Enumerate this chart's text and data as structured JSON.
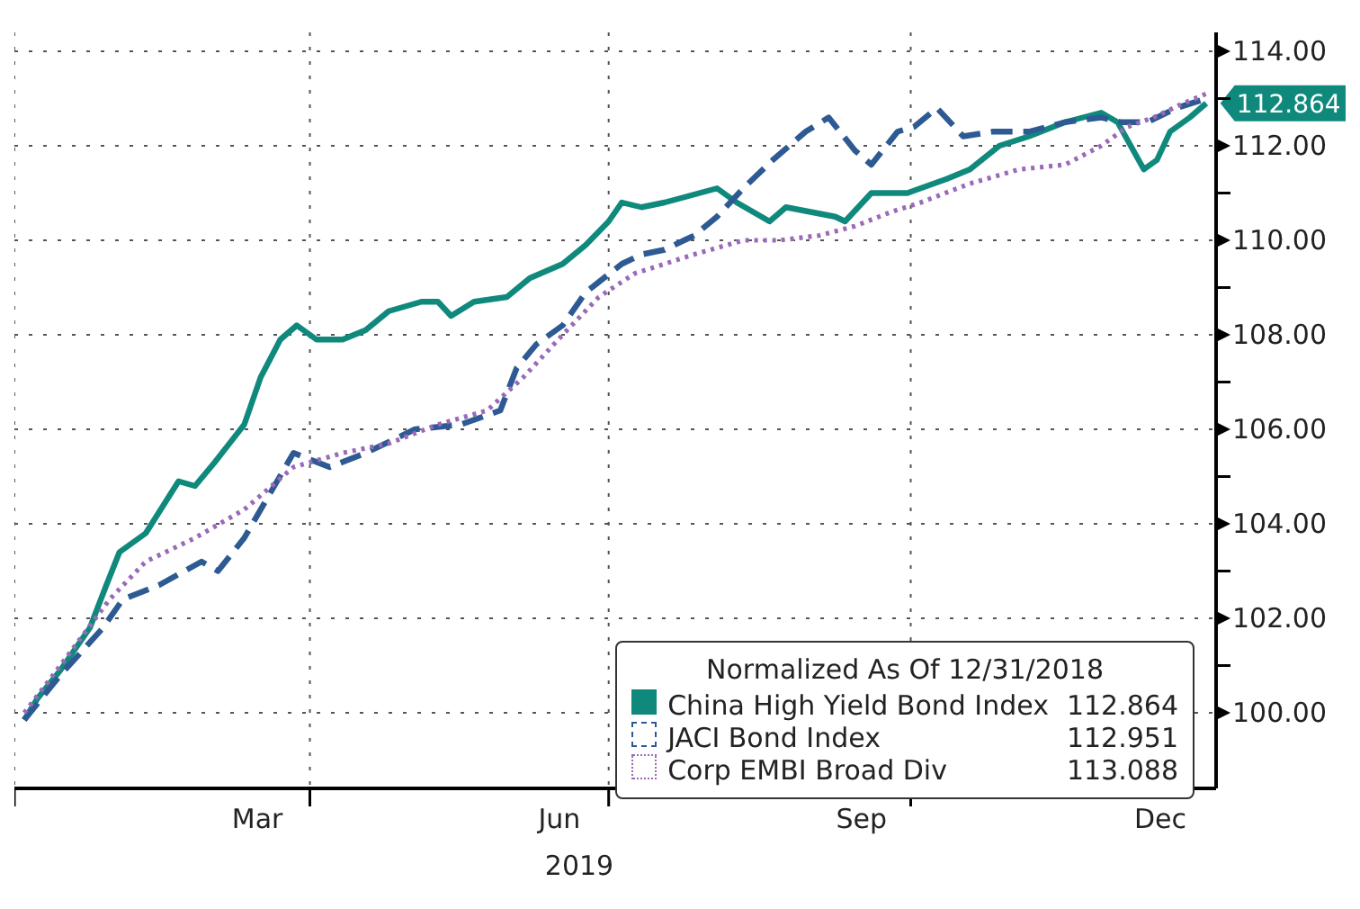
{
  "chart_data": {
    "type": "line",
    "xlabel": "2019",
    "legend_title": "Normalized As Of 12/31/2018",
    "xlim": [
      "2019-01-01",
      "2020-01-02"
    ],
    "xticks": [
      {
        "value": "2019-01-01",
        "label": null
      },
      {
        "value": "2019-03-16",
        "label": "Mar"
      },
      {
        "value": "2019-04-01",
        "label": null
      },
      {
        "value": "2019-06-16",
        "label": "Jun"
      },
      {
        "value": "2019-07-01",
        "label": null
      },
      {
        "value": "2019-09-16",
        "label": "Sep"
      },
      {
        "value": "2019-10-01",
        "label": null
      },
      {
        "value": "2019-12-16",
        "label": "Dec"
      }
    ],
    "ylim": [
      98.4,
      114.4
    ],
    "yticks": [
      {
        "value": 100,
        "label": "100.00"
      },
      {
        "value": 101,
        "label": null
      },
      {
        "value": 102,
        "label": "102.00"
      },
      {
        "value": 103,
        "label": null
      },
      {
        "value": 104,
        "label": "104.00"
      },
      {
        "value": 105,
        "label": null
      },
      {
        "value": 106,
        "label": "106.00"
      },
      {
        "value": 107,
        "label": null
      },
      {
        "value": 108,
        "label": "108.00"
      },
      {
        "value": 109,
        "label": null
      },
      {
        "value": 110,
        "label": "110.00"
      },
      {
        "value": 111,
        "label": null
      },
      {
        "value": 112,
        "label": "112.00"
      },
      {
        "value": 113,
        "label": null
      },
      {
        "value": 114,
        "label": "114.00"
      }
    ],
    "grid": true,
    "legend": "bottom right",
    "annotations": [
      {
        "text": "112.864",
        "x": "2019-12-31",
        "y": 112.9
      },
      "112.864",
      "112.951",
      "113.088"
    ],
    "series": [
      {
        "name": "China High Yield Bond Index",
        "color": "#10897d",
        "line_style": "solid",
        "x": [
          "2019-01-04",
          "2019-01-08",
          "2019-01-15",
          "2019-01-24",
          "2019-01-29",
          "2019-02-02",
          "2019-02-10",
          "2019-02-20",
          "2019-02-25",
          "2019-03-03",
          "2019-03-12",
          "2019-03-17",
          "2019-03-23",
          "2019-03-28",
          "2019-04-03",
          "2019-04-11",
          "2019-04-18",
          "2019-04-25",
          "2019-05-05",
          "2019-05-10",
          "2019-05-14",
          "2019-05-21",
          "2019-05-31",
          "2019-06-07",
          "2019-06-17",
          "2019-06-24",
          "2019-07-01",
          "2019-07-05",
          "2019-07-11",
          "2019-07-18",
          "2019-08-03",
          "2019-08-09",
          "2019-08-19",
          "2019-08-24",
          "2019-09-08",
          "2019-09-11",
          "2019-09-19",
          "2019-09-30",
          "2019-10-12",
          "2019-10-19",
          "2019-10-28",
          "2019-11-06",
          "2019-11-17",
          "2019-11-28",
          "2019-12-03",
          "2019-12-11",
          "2019-12-15",
          "2019-12-19",
          "2019-12-25",
          "2019-12-30"
        ],
        "values": [
          99.85,
          100.3,
          100.9,
          101.8,
          102.7,
          103.4,
          103.8,
          104.9,
          104.8,
          105.3,
          106.1,
          107.1,
          107.9,
          108.2,
          107.9,
          107.9,
          108.1,
          108.5,
          108.7,
          108.7,
          108.4,
          108.7,
          108.8,
          109.2,
          109.5,
          109.9,
          110.4,
          110.8,
          110.7,
          110.8,
          111.1,
          110.8,
          110.4,
          110.7,
          110.5,
          110.4,
          111.0,
          111.0,
          111.3,
          111.5,
          112.0,
          112.2,
          112.5,
          112.7,
          112.5,
          111.5,
          111.7,
          112.3,
          112.6,
          112.9
        ]
      },
      {
        "name": "JACI Bond Index",
        "color": "#2e5a93",
        "line_style": "dashed",
        "x": [
          "2019-01-04",
          "2019-01-15",
          "2019-01-28",
          "2019-02-03",
          "2019-02-14",
          "2019-02-27",
          "2019-03-04",
          "2019-03-12",
          "2019-03-27",
          "2019-04-07",
          "2019-04-18",
          "2019-05-03",
          "2019-05-17",
          "2019-05-29",
          "2019-06-03",
          "2019-06-09",
          "2019-06-17",
          "2019-06-24",
          "2019-07-05",
          "2019-07-11",
          "2019-07-18",
          "2019-07-27",
          "2019-08-03",
          "2019-08-11",
          "2019-08-20",
          "2019-08-30",
          "2019-09-06",
          "2019-09-14",
          "2019-09-19",
          "2019-09-27",
          "2019-10-02",
          "2019-10-09",
          "2019-10-17",
          "2019-10-26",
          "2019-11-06",
          "2019-11-17",
          "2019-11-28",
          "2019-12-04",
          "2019-12-12",
          "2019-12-21",
          "2019-12-30"
        ],
        "values": [
          99.85,
          100.8,
          101.8,
          102.4,
          102.7,
          103.2,
          103.0,
          103.7,
          105.5,
          105.2,
          105.5,
          106.0,
          106.1,
          106.4,
          107.3,
          107.8,
          108.2,
          108.9,
          109.5,
          109.7,
          109.8,
          110.1,
          110.5,
          111.1,
          111.7,
          112.3,
          112.6,
          111.9,
          111.6,
          112.3,
          112.4,
          112.8,
          112.2,
          112.3,
          112.3,
          112.5,
          112.6,
          112.5,
          112.5,
          112.8,
          113.0
        ]
      },
      {
        "name": "Corp EMBI Broad Div",
        "color": "#9a6ab8",
        "line_style": "dotted",
        "x": [
          "2019-01-04",
          "2019-01-15",
          "2019-01-30",
          "2019-02-10",
          "2019-02-25",
          "2019-03-12",
          "2019-03-27",
          "2019-04-11",
          "2019-04-25",
          "2019-05-10",
          "2019-05-25",
          "2019-06-05",
          "2019-06-17",
          "2019-06-28",
          "2019-07-09",
          "2019-07-27",
          "2019-08-11",
          "2019-08-22",
          "2019-09-03",
          "2019-09-14",
          "2019-09-25",
          "2019-10-04",
          "2019-10-19",
          "2019-11-03",
          "2019-11-17",
          "2019-11-28",
          "2019-12-06",
          "2019-12-14",
          "2019-12-23",
          "2019-12-30"
        ],
        "values": [
          100.0,
          101.0,
          102.4,
          103.2,
          103.7,
          104.3,
          105.2,
          105.5,
          105.7,
          106.1,
          106.4,
          107.1,
          108.0,
          108.8,
          109.3,
          109.7,
          110.0,
          110.0,
          110.1,
          110.3,
          110.6,
          110.8,
          111.2,
          111.5,
          111.6,
          112.0,
          112.4,
          112.6,
          112.9,
          113.1
        ]
      }
    ]
  }
}
